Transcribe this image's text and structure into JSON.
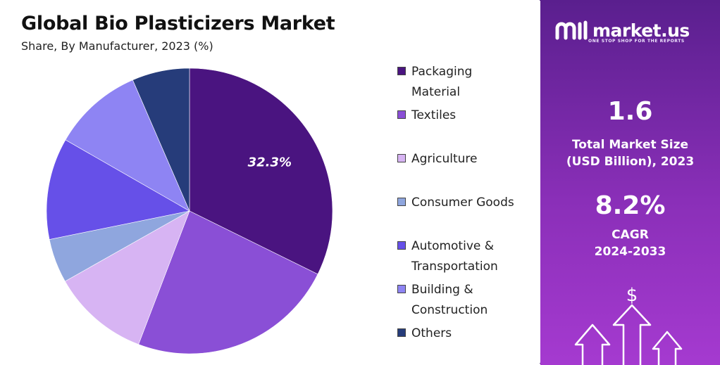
{
  "chart_data": {
    "type": "pie",
    "title": "Global Bio Plasticizers Market",
    "subtitle": "Share, By Manufacturer, 2023 (%)",
    "slices": [
      {
        "name": "Packaging Material",
        "value": 32.3,
        "color": "#4a1480",
        "label": "32.3%"
      },
      {
        "name": "Textiles",
        "value": 23.5,
        "color": "#8a4fd6",
        "label": ""
      },
      {
        "name": "Agriculture",
        "value": 11.0,
        "color": "#d7b4f3",
        "label": ""
      },
      {
        "name": "Consumer Goods",
        "value": 5.0,
        "color": "#8fa6de",
        "label": ""
      },
      {
        "name": "Automotive & Transportation",
        "value": 11.5,
        "color": "#6650e8",
        "label": ""
      },
      {
        "name": "Building & Construction",
        "value": 10.2,
        "color": "#8e84f3",
        "label": ""
      },
      {
        "name": "Others",
        "value": 6.5,
        "color": "#263c7a",
        "label": ""
      }
    ],
    "legend_position": "right"
  },
  "legend": [
    {
      "lines": [
        "Packaging",
        "Material"
      ],
      "color": "#4a1480"
    },
    {
      "lines": [
        "Textiles"
      ],
      "color": "#8a4fd6"
    },
    {
      "lines": [
        "Agriculture"
      ],
      "color": "#d7b4f3"
    },
    {
      "lines": [
        "Consumer Goods"
      ],
      "color": "#8fa6de"
    },
    {
      "lines": [
        "Automotive &",
        "Transportation"
      ],
      "color": "#6650e8"
    },
    {
      "lines": [
        "Building &",
        "Construction"
      ],
      "color": "#8e84f3"
    },
    {
      "lines": [
        "Others"
      ],
      "color": "#263c7a"
    }
  ],
  "sidebar": {
    "brand": "market.us",
    "tagline": "ONE STOP SHOP FOR THE REPORTS",
    "market_size_value": "1.6",
    "market_size_label_1": "Total Market Size",
    "market_size_label_2": "(USD Billion), 2023",
    "cagr_value": "8.2%",
    "cagr_label_1": "CAGR",
    "cagr_label_2": "2024-2033",
    "currency_symbol": "$",
    "accent_color": "#8a2fb8"
  }
}
